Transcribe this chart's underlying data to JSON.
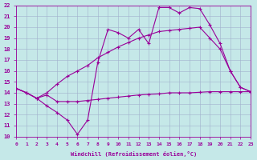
{
  "xlabel": "Windchill (Refroidissement éolien,°C)",
  "xlim": [
    0,
    23
  ],
  "ylim": [
    10,
    22
  ],
  "xticks": [
    0,
    1,
    2,
    3,
    4,
    5,
    6,
    7,
    8,
    9,
    10,
    11,
    12,
    13,
    14,
    15,
    16,
    17,
    18,
    19,
    20,
    21,
    22,
    23
  ],
  "yticks": [
    10,
    11,
    12,
    13,
    14,
    15,
    16,
    17,
    18,
    19,
    20,
    21,
    22
  ],
  "bg_color": "#c5e8e8",
  "line_color": "#990099",
  "grid_color": "#a0b0cc",
  "line1_x": [
    0,
    1,
    2,
    3,
    4,
    5,
    6,
    7,
    8,
    9,
    10,
    11,
    12,
    13,
    14,
    15,
    16,
    17,
    18,
    19,
    20,
    21,
    22,
    23
  ],
  "line1_y": [
    14.4,
    14.0,
    13.5,
    13.8,
    13.2,
    13.2,
    13.2,
    13.3,
    13.4,
    13.5,
    13.6,
    13.7,
    13.8,
    13.85,
    13.9,
    14.0,
    14.0,
    14.0,
    14.05,
    14.1,
    14.1,
    14.1,
    14.1,
    14.1
  ],
  "line2_x": [
    0,
    1,
    2,
    3,
    4,
    5,
    6,
    7,
    8,
    9,
    10,
    11,
    12,
    13,
    14,
    15,
    16,
    17,
    18,
    19,
    20,
    21,
    22,
    23
  ],
  "line2_y": [
    14.4,
    14.0,
    13.5,
    14.0,
    14.8,
    15.5,
    16.0,
    16.5,
    17.2,
    17.7,
    18.2,
    18.6,
    19.0,
    19.3,
    19.6,
    19.7,
    19.8,
    19.9,
    20.0,
    19.0,
    18.0,
    16.0,
    14.5,
    14.1
  ],
  "line3_x": [
    0,
    1,
    2,
    3,
    4,
    5,
    6,
    7,
    8,
    9,
    10,
    11,
    12,
    13,
    14,
    15,
    16,
    17,
    18,
    19,
    20,
    21,
    22,
    23
  ],
  "line3_y": [
    14.4,
    14.0,
    13.5,
    12.8,
    12.2,
    11.5,
    10.2,
    11.5,
    16.8,
    19.8,
    19.5,
    19.0,
    19.8,
    18.5,
    21.8,
    21.8,
    21.3,
    21.8,
    21.7,
    20.2,
    18.5,
    16.0,
    14.5,
    14.1
  ]
}
